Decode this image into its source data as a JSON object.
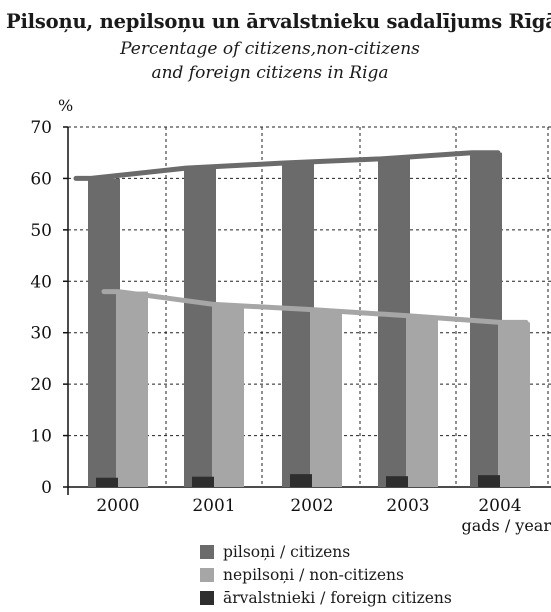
{
  "chart_data": {
    "type": "bar",
    "title": "Pilsoņu, nepilsoņu un ārvalstnieku sadalījums Rīgā",
    "subtitle_lines": [
      "Percentage of citizens,non-citizens",
      "and foreign citizens in Riga"
    ],
    "ylabel": "%",
    "xlabel": "gads / year",
    "ylim": [
      0,
      70
    ],
    "yticks": [
      "0",
      "10",
      "20",
      "30",
      "40",
      "50",
      "60",
      "70"
    ],
    "grid": true,
    "legend_position": "bottom",
    "categories": [
      "2000",
      "2001",
      "2002",
      "2003",
      "2004"
    ],
    "series": [
      {
        "name": "pilsoņi / citizens",
        "color": "#6b6b6b",
        "values": [
          60.0,
          62.0,
          63.0,
          63.8,
          65.0
        ]
      },
      {
        "name": "nepilsoņi / non-citizens",
        "color": "#a6a6a6",
        "values": [
          38.0,
          35.5,
          34.5,
          33.3,
          32.0
        ]
      },
      {
        "name": "ārvalstnieki / foreign citizens",
        "color": "#2e2e2e",
        "values": [
          1.8,
          2.0,
          2.5,
          2.1,
          2.3
        ]
      }
    ]
  }
}
